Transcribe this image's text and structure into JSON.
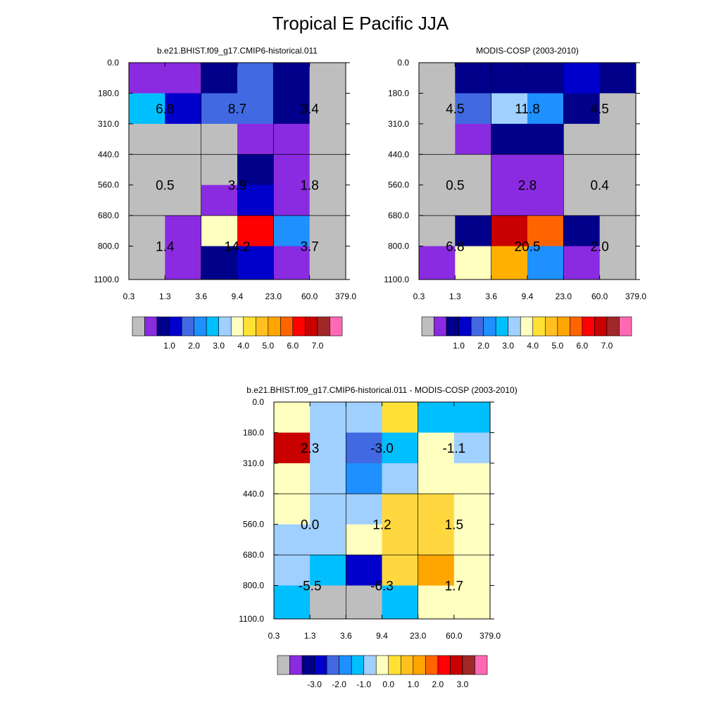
{
  "figure_title": "Tropical E Pacific JJA",
  "chart_data": [
    {
      "type": "heatmap",
      "title": "b.e21.BHIST.f09_g17.CMIP6-historical.011",
      "x_tick_labels": [
        "0.3",
        "1.3",
        "3.6",
        "9.4",
        "23.0",
        "60.0",
        "379.0"
      ],
      "y_tick_labels": [
        "0.0",
        "180.0",
        "310.0",
        "440.0",
        "560.0",
        "680.0",
        "800.0",
        "1100.0"
      ],
      "cell_colors": [
        [
          "#8a2be2",
          "#8a2be2",
          "#00008b",
          "#4169e1",
          "#00008b",
          "#bebebe"
        ],
        [
          "#00bfff",
          "#0000cd",
          "#4169e1",
          "#4169e1",
          "#00008b",
          "#bebebe"
        ],
        [
          "#bebebe",
          "#bebebe",
          "#bebebe",
          "#8a2be2",
          "#8a2be2",
          "#bebebe"
        ],
        [
          "#bebebe",
          "#bebebe",
          "#bebebe",
          "#00008b",
          "#8a2be2",
          "#bebebe"
        ],
        [
          "#bebebe",
          "#bebebe",
          "#8a2be2",
          "#0000cd",
          "#8a2be2",
          "#bebebe"
        ],
        [
          "#bebebe",
          "#8a2be2",
          "#ffffc0",
          "#ff0000",
          "#1e90ff",
          "#bebebe"
        ],
        [
          "#bebebe",
          "#8a2be2",
          "#00008b",
          "#0000cd",
          "#8a2be2",
          "#bebebe"
        ]
      ],
      "block_values": [
        [
          "6.8",
          "8.7",
          "3.4"
        ],
        [
          "0.5",
          "3.9",
          "1.8"
        ],
        [
          "1.4",
          "14.2",
          "3.7"
        ]
      ],
      "colorbar": {
        "colors": [
          "#bebebe",
          "#8a2be2",
          "#00008b",
          "#0000cd",
          "#4169e1",
          "#1e90ff",
          "#00bfff",
          "#a0d0ff",
          "#ffffc0",
          "#ffe135",
          "#ffc020",
          "#ffa500",
          "#ff6400",
          "#ff0000",
          "#c80000",
          "#a02828",
          "#ff69b4"
        ],
        "labels": [
          "1.0",
          "2.0",
          "3.0",
          "4.0",
          "5.0",
          "6.0",
          "7.0"
        ]
      }
    },
    {
      "type": "heatmap",
      "title": "MODIS-COSP (2003-2010)",
      "x_tick_labels": [
        "0.3",
        "1.3",
        "3.6",
        "9.4",
        "23.0",
        "60.0",
        "379.0"
      ],
      "y_tick_labels": [
        "0.0",
        "180.0",
        "310.0",
        "440.0",
        "560.0",
        "680.0",
        "800.0",
        "1100.0"
      ],
      "cell_colors": [
        [
          "#bebebe",
          "#00008b",
          "#00008b",
          "#00008b",
          "#0000cd",
          "#00008b"
        ],
        [
          "#bebebe",
          "#4169e1",
          "#a0d0ff",
          "#1e90ff",
          "#00008b",
          "#bebebe"
        ],
        [
          "#bebebe",
          "#8a2be2",
          "#00008b",
          "#00008b",
          "#bebebe",
          "#bebebe"
        ],
        [
          "#bebebe",
          "#bebebe",
          "#8a2be2",
          "#8a2be2",
          "#bebebe",
          "#bebebe"
        ],
        [
          "#bebebe",
          "#bebebe",
          "#8a2be2",
          "#8a2be2",
          "#bebebe",
          "#bebebe"
        ],
        [
          "#bebebe",
          "#00008b",
          "#c80000",
          "#ff6400",
          "#00008b",
          "#bebebe"
        ],
        [
          "#8a2be2",
          "#ffffc0",
          "#ffb000",
          "#1e90ff",
          "#8a2be2",
          "#bebebe"
        ]
      ],
      "block_values": [
        [
          "4.5",
          "11.8",
          "4.5"
        ],
        [
          "0.5",
          "2.8",
          "0.4"
        ],
        [
          "6.8",
          "20.5",
          "2.0"
        ]
      ],
      "colorbar": {
        "colors": [
          "#bebebe",
          "#8a2be2",
          "#00008b",
          "#0000cd",
          "#4169e1",
          "#1e90ff",
          "#00bfff",
          "#a0d0ff",
          "#ffffc0",
          "#ffe135",
          "#ffc020",
          "#ffa500",
          "#ff6400",
          "#ff0000",
          "#c80000",
          "#a02828",
          "#ff69b4"
        ],
        "labels": [
          "1.0",
          "2.0",
          "3.0",
          "4.0",
          "5.0",
          "6.0",
          "7.0"
        ]
      }
    },
    {
      "type": "heatmap",
      "title": "b.e21.BHIST.f09_g17.CMIP6-historical.011 - MODIS-COSP (2003-2010)",
      "x_tick_labels": [
        "0.3",
        "1.3",
        "3.6",
        "9.4",
        "23.0",
        "60.0",
        "379.0"
      ],
      "y_tick_labels": [
        "0.0",
        "180.0",
        "310.0",
        "440.0",
        "560.0",
        "680.0",
        "800.0",
        "1100.0"
      ],
      "cell_colors": [
        [
          "#ffffc0",
          "#a0d0ff",
          "#a0d0ff",
          "#ffe135",
          "#00bfff",
          "#00bfff"
        ],
        [
          "#c80000",
          "#a0d0ff",
          "#4169e1",
          "#00bfff",
          "#ffffc0",
          "#a0d0ff"
        ],
        [
          "#ffffc0",
          "#a0d0ff",
          "#1e90ff",
          "#a0d0ff",
          "#ffffc0",
          "#ffffc0"
        ],
        [
          "#ffffc0",
          "#a0d0ff",
          "#a0d0ff",
          "#ffd840",
          "#ffd840",
          "#ffffc0"
        ],
        [
          "#a0d0ff",
          "#a0d0ff",
          "#ffffc0",
          "#ffd840",
          "#ffd840",
          "#ffffc0"
        ],
        [
          "#a0d0ff",
          "#00bfff",
          "#0000cd",
          "#ffd840",
          "#ffa500",
          "#ffffc0"
        ],
        [
          "#00bfff",
          "#bebebe",
          "#bebebe",
          "#00bfff",
          "#ffffc0",
          "#ffffc0"
        ]
      ],
      "block_values": [
        [
          "2.3",
          "-3.0",
          "-1.1"
        ],
        [
          "0.0",
          "1.2",
          "1.5"
        ],
        [
          "-5.5",
          "-6.3",
          "1.7"
        ]
      ],
      "colorbar": {
        "colors": [
          "#bebebe",
          "#8a2be2",
          "#00008b",
          "#0000cd",
          "#4169e1",
          "#1e90ff",
          "#00bfff",
          "#a0d0ff",
          "#ffffc0",
          "#ffe135",
          "#ffc020",
          "#ffa500",
          "#ff6400",
          "#ff0000",
          "#c80000",
          "#a02828",
          "#ff69b4"
        ],
        "labels": [
          "-3.0",
          "-2.0",
          "-1.0",
          "0.0",
          "1.0",
          "2.0",
          "3.0"
        ]
      }
    }
  ]
}
